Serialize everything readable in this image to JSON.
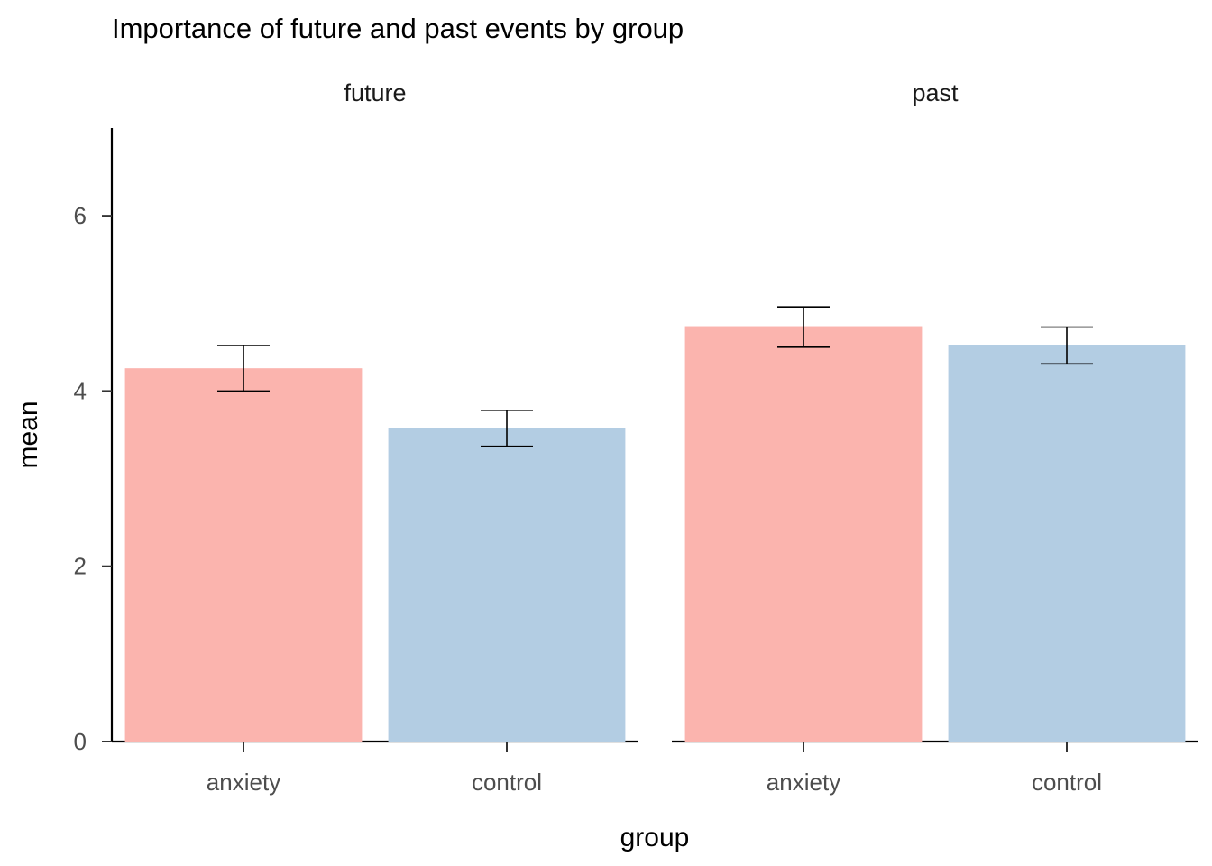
{
  "chart_data": {
    "type": "bar",
    "title": "Importance of future and past events by group",
    "xlabel": "group",
    "ylabel": "mean",
    "ylim": [
      0,
      7
    ],
    "yticks": [
      0,
      2,
      4,
      6
    ],
    "grid": false,
    "legend": "none",
    "categories": [
      "anxiety",
      "control"
    ],
    "colors": {
      "anxiety": "#fbb4ae",
      "control": "#b3cde3"
    },
    "facets": [
      {
        "label": "future",
        "bars": [
          {
            "category": "anxiety",
            "value": 4.26,
            "ymin": 4.0,
            "ymax": 4.52
          },
          {
            "category": "control",
            "value": 3.58,
            "ymin": 3.37,
            "ymax": 3.78
          }
        ]
      },
      {
        "label": "past",
        "bars": [
          {
            "category": "anxiety",
            "value": 4.74,
            "ymin": 4.5,
            "ymax": 4.96
          },
          {
            "category": "control",
            "value": 4.52,
            "ymin": 4.31,
            "ymax": 4.73
          }
        ]
      }
    ]
  }
}
